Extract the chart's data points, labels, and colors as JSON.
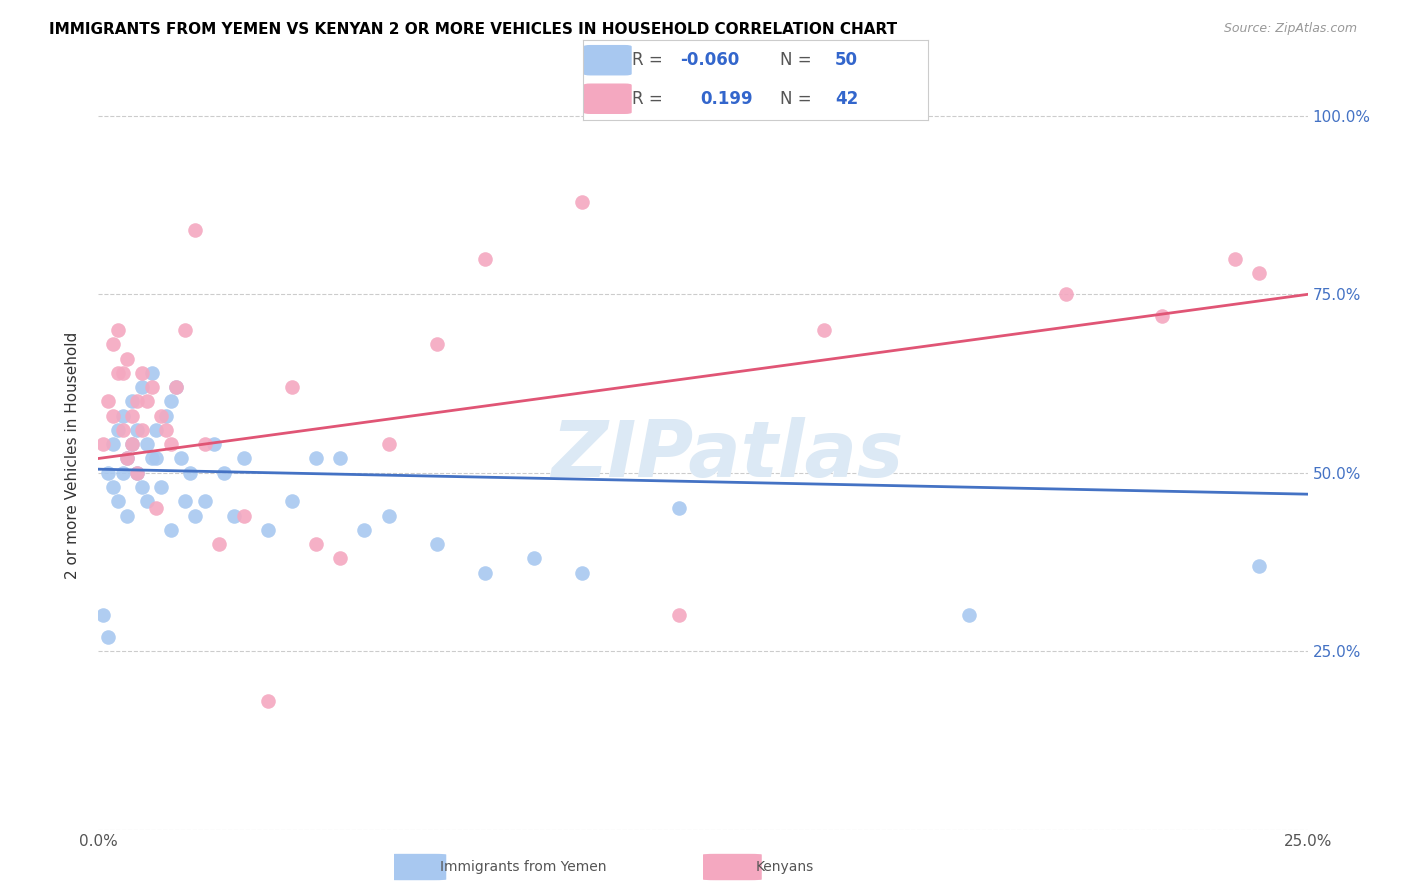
{
  "title": "IMMIGRANTS FROM YEMEN VS KENYAN 2 OR MORE VEHICLES IN HOUSEHOLD CORRELATION CHART",
  "source": "Source: ZipAtlas.com",
  "ylabel": "2 or more Vehicles in Household",
  "watermark": "ZIPatlas",
  "legend1_R": -0.06,
  "legend1_N": 50,
  "legend2_R": 0.199,
  "legend2_N": 42,
  "x_min": 0.0,
  "x_max": 0.25,
  "y_min": 0.0,
  "y_max": 1.05,
  "x_ticks": [
    0.0,
    0.05,
    0.1,
    0.15,
    0.2,
    0.25
  ],
  "x_tick_labels": [
    "0.0%",
    "",
    "",
    "",
    "",
    "25.0%"
  ],
  "y_ticks": [
    0.0,
    0.25,
    0.5,
    0.75,
    1.0
  ],
  "y_tick_labels": [
    "",
    "25.0%",
    "50.0%",
    "75.0%",
    "100.0%"
  ],
  "color_blue": "#A8C8F0",
  "color_pink": "#F4A8C0",
  "line_blue": "#4472C4",
  "line_pink": "#E05575",
  "blue_scatter_x": [
    0.001,
    0.002,
    0.002,
    0.003,
    0.003,
    0.004,
    0.004,
    0.005,
    0.005,
    0.006,
    0.006,
    0.007,
    0.007,
    0.008,
    0.008,
    0.009,
    0.009,
    0.01,
    0.01,
    0.011,
    0.011,
    0.012,
    0.012,
    0.013,
    0.014,
    0.015,
    0.015,
    0.016,
    0.017,
    0.018,
    0.019,
    0.02,
    0.022,
    0.024,
    0.026,
    0.028,
    0.03,
    0.035,
    0.04,
    0.045,
    0.05,
    0.055,
    0.06,
    0.07,
    0.08,
    0.09,
    0.1,
    0.12,
    0.18,
    0.24
  ],
  "blue_scatter_y": [
    0.3,
    0.27,
    0.5,
    0.48,
    0.54,
    0.46,
    0.56,
    0.5,
    0.58,
    0.52,
    0.44,
    0.54,
    0.6,
    0.5,
    0.56,
    0.48,
    0.62,
    0.46,
    0.54,
    0.52,
    0.64,
    0.52,
    0.56,
    0.48,
    0.58,
    0.6,
    0.42,
    0.62,
    0.52,
    0.46,
    0.5,
    0.44,
    0.46,
    0.54,
    0.5,
    0.44,
    0.52,
    0.42,
    0.46,
    0.52,
    0.52,
    0.42,
    0.44,
    0.4,
    0.36,
    0.38,
    0.36,
    0.45,
    0.3,
    0.37
  ],
  "pink_scatter_x": [
    0.001,
    0.002,
    0.003,
    0.003,
    0.004,
    0.004,
    0.005,
    0.005,
    0.006,
    0.006,
    0.007,
    0.007,
    0.008,
    0.008,
    0.009,
    0.009,
    0.01,
    0.011,
    0.012,
    0.013,
    0.014,
    0.015,
    0.016,
    0.018,
    0.02,
    0.022,
    0.025,
    0.03,
    0.035,
    0.04,
    0.045,
    0.05,
    0.06,
    0.07,
    0.08,
    0.1,
    0.12,
    0.15,
    0.2,
    0.22,
    0.235,
    0.24
  ],
  "pink_scatter_y": [
    0.54,
    0.6,
    0.58,
    0.68,
    0.64,
    0.7,
    0.56,
    0.64,
    0.52,
    0.66,
    0.58,
    0.54,
    0.6,
    0.5,
    0.64,
    0.56,
    0.6,
    0.62,
    0.45,
    0.58,
    0.56,
    0.54,
    0.62,
    0.7,
    0.84,
    0.54,
    0.4,
    0.44,
    0.18,
    0.62,
    0.4,
    0.38,
    0.54,
    0.68,
    0.8,
    0.88,
    0.3,
    0.7,
    0.75,
    0.72,
    0.8,
    0.78
  ],
  "blue_line_x0": 0.0,
  "blue_line_x1": 0.25,
  "blue_line_y0": 0.505,
  "blue_line_y1": 0.47,
  "pink_line_x0": 0.0,
  "pink_line_x1": 0.25,
  "pink_line_y0": 0.52,
  "pink_line_y1": 0.75
}
